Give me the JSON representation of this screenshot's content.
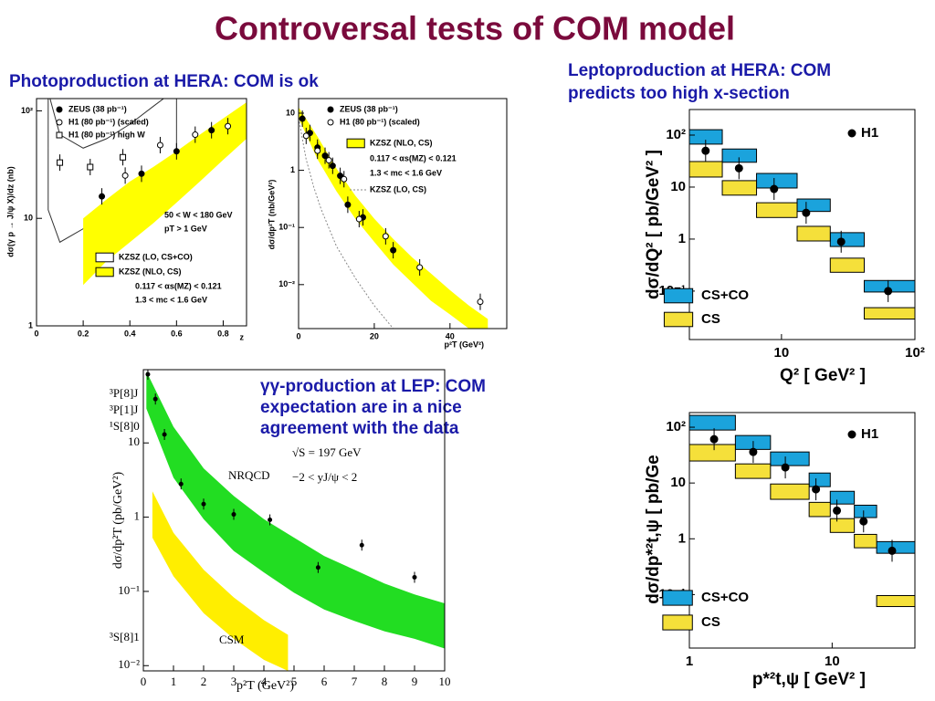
{
  "title": "Controversal tests of COM model",
  "headings": [
    "Photoproduction at HERA: COM is ok",
    "Leptoproduction at HERA: COM",
    "predicts too high x-section"
  ],
  "caption": [
    "γγ-production at LEP: COM",
    "expectation are in a nice",
    "agreement with the data"
  ],
  "chart_data": [
    {
      "type": "scatter",
      "xlabel": "z",
      "ylabel": "dσ(γ p → J/ψ X)/dz  (nb)",
      "xlim": [
        0,
        0.9
      ],
      "ylim": [
        1,
        130
      ],
      "ylog": true,
      "xticks": [
        0,
        0.2,
        0.4,
        0.6,
        0.8
      ],
      "yticks": [
        1,
        10,
        {
          "value": 100,
          "label": "10²"
        }
      ],
      "series": [
        {
          "name": "ZEUS (38 pb⁻¹)",
          "marker": "filled",
          "color": "#000000",
          "x": [
            0.28,
            0.45,
            0.6,
            0.75
          ],
          "values": [
            16,
            26,
            42,
            66
          ]
        },
        {
          "name": "H1 (80 pb⁻¹) (scaled)",
          "marker": "open",
          "color": "#000000",
          "x": [
            0.38,
            0.53,
            0.68,
            0.82
          ],
          "values": [
            25,
            48,
            60,
            72
          ]
        },
        {
          "name": "H1 (80 pb⁻¹) high W",
          "marker": "square",
          "color": "#000000",
          "x": [
            0.1,
            0.23,
            0.37
          ],
          "values": [
            33,
            30,
            37
          ]
        }
      ],
      "bands": [
        {
          "name": "KZSZ (LO, CS+CO)",
          "color": "none",
          "x": [
            0.05,
            0.1,
            0.2,
            0.3,
            0.4,
            0.5,
            0.6
          ],
          "upper": [
            150,
            60,
            45,
            55,
            75,
            110,
            160
          ],
          "lower": [
            12,
            6,
            8,
            13,
            17,
            22,
            28
          ]
        },
        {
          "name": "KZSZ (NLO, CS)",
          "color": "#ffff00",
          "x": [
            0.2,
            0.3,
            0.4,
            0.5,
            0.6,
            0.7,
            0.8,
            0.9
          ],
          "upper": [
            10,
            15,
            22,
            30,
            42,
            60,
            85,
            120
          ],
          "lower": [
            2.4,
            4,
            6,
            9,
            14,
            22,
            35,
            55
          ]
        }
      ],
      "annotations": [
        "50 < W < 180 GeV",
        "pT > 1 GeV",
        "0.117 < αs(MZ) < 0.121",
        "1.3 < mc < 1.6 GeV"
      ]
    },
    {
      "type": "scatter",
      "xlabel": "p²T (GeV²)",
      "ylabel": "dσ/dp²T (nb/GeV²)",
      "xlim": [
        0,
        55
      ],
      "ylim": [
        0.0017,
        18
      ],
      "ylog": true,
      "xticks": [
        0,
        20,
        40
      ],
      "yticks": [
        {
          "value": 0.01,
          "label": "10⁻²"
        },
        {
          "value": 0.1,
          "label": "10⁻¹"
        },
        1,
        10
      ],
      "series": [
        {
          "name": "ZEUS (38 pb⁻¹)",
          "marker": "filled",
          "color": "#000000",
          "x": [
            1,
            3,
            5,
            7,
            9,
            11,
            13,
            17,
            25
          ],
          "values": [
            8,
            4.5,
            2.5,
            1.8,
            1.2,
            0.8,
            0.25,
            0.15,
            0.04
          ]
        },
        {
          "name": "H1 (80 pb⁻¹) (scaled)",
          "marker": "open",
          "color": "#000000",
          "x": [
            2,
            5,
            8,
            12,
            16,
            23,
            32,
            48
          ],
          "values": [
            4,
            2.2,
            1.5,
            0.7,
            0.14,
            0.07,
            0.02,
            0.005
          ]
        }
      ],
      "bands": [
        {
          "name": "KZSZ (NLO, CS)",
          "color": "#ffff00",
          "x": [
            0,
            5,
            10,
            15,
            20,
            25,
            30,
            35,
            40,
            45,
            50
          ],
          "upper": [
            12.7,
            3.9,
            1.08,
            0.36,
            0.142,
            0.063,
            0.03,
            0.0156,
            0.008,
            0.0043,
            0.0025
          ],
          "lower": [
            8.2,
            1.56,
            0.43,
            0.142,
            0.056,
            0.0225,
            0.0108,
            0.0052,
            0.003,
            0.0017,
            0.0011
          ]
        }
      ],
      "lines": [
        {
          "name": "KZSZ (LO, CS)",
          "color": "#888888",
          "x": [
            0,
            2,
            4,
            6,
            8,
            10,
            15,
            20,
            25
          ],
          "values": [
            8.2,
            1.56,
            0.51,
            0.205,
            0.098,
            0.047,
            0.013,
            0.0043,
            0.0017
          ]
        }
      ],
      "annotations": [
        "0.117 < αs(MZ) < 0.121",
        "1.3 < mc < 1.6 GeV"
      ]
    },
    {
      "type": "step",
      "xlabel": "Q² [ GeV² ]",
      "ylabel": "dσ/dQ² [ pb/GeV² ]",
      "xlim": [
        2.04,
        100
      ],
      "ylim": [
        0.0117,
        310
      ],
      "xlog": true,
      "ylog": true,
      "xticks": [
        10,
        {
          "value": 100,
          "label": "10²"
        }
      ],
      "yticks": [
        {
          "value": 0.1,
          "label": "10⁻¹"
        },
        1,
        10,
        {
          "value": 100,
          "label": "10²"
        }
      ],
      "boxes": [
        {
          "name": "CS+CO",
          "color": "#1ba3dc",
          "bins": [
            2.04,
            3.6,
            6.5,
            13.1,
            23.2,
            41.7,
            100
          ],
          "upper": [
            127,
            54,
            18.3,
            5.9,
            1.33,
            0.16
          ],
          "lower": [
            67,
            30,
            9.6,
            3.4,
            0.72,
            0.096
          ]
        },
        {
          "name": "CS",
          "color": "#f5e03a",
          "bins": [
            2.04,
            3.6,
            6.5,
            13.1,
            23.2,
            41.7,
            100
          ],
          "upper": [
            31,
            13.3,
            5,
            1.76,
            0.43,
            0.048
          ],
          "lower": [
            15.6,
            7,
            2.6,
            0.92,
            0.23,
            0.029
          ]
        }
      ],
      "series": [
        {
          "name": "H1",
          "marker": "filled",
          "color": "#000000",
          "x": [
            2.7,
            4.8,
            8.8,
            15.3,
            28,
            63
          ],
          "values": [
            50,
            23,
            9.2,
            3.2,
            0.89,
            0.1
          ]
        }
      ]
    },
    {
      "type": "scatter",
      "xlabel": "p²T (GeV²)",
      "ylabel": "dσ/dp²T (pb/GeV²)",
      "xlim": [
        0,
        10
      ],
      "ylim": [
        0.0085,
        97
      ],
      "ylog": true,
      "xticks": [
        0,
        1,
        2,
        3,
        4,
        5,
        6,
        7,
        8,
        9,
        10
      ],
      "yticks": [
        {
          "value": 0.01,
          "label": "10⁻²"
        },
        {
          "value": 0.1,
          "label": "10⁻¹"
        },
        1,
        10
      ],
      "bands": [
        {
          "name": "NRQCD",
          "color": "#22dd22",
          "x": [
            0.1,
            1,
            2,
            3,
            4,
            5,
            6,
            7,
            8,
            9,
            10
          ],
          "upper": [
            92,
            16.5,
            4.55,
            1.93,
            0.94,
            0.53,
            0.3,
            0.196,
            0.128,
            0.091,
            0.069
          ],
          "lower": [
            29,
            3.4,
            0.94,
            0.35,
            0.18,
            0.096,
            0.057,
            0.04,
            0.029,
            0.023,
            0.017
          ]
        },
        {
          "name": "CSM",
          "color": "#ffee00",
          "x": [
            0.3,
            1,
            2,
            3,
            4,
            4.8
          ],
          "upper": [
            2.23,
            0.615,
            0.196,
            0.083,
            0.041,
            0.026
          ],
          "lower": [
            0.53,
            0.16,
            0.051,
            0.023,
            0.012,
            0.0085
          ]
        }
      ],
      "series": [
        {
          "marker": "filled",
          "color": "#000000",
          "x": [
            0.15,
            0.4,
            0.7,
            1.25,
            2,
            3,
            4.2,
            5.8,
            7.25,
            9
          ],
          "values": [
            84,
            39,
            13,
            2.8,
            1.5,
            1.09,
            0.92,
            0.21,
            0.42,
            0.155
          ]
        }
      ],
      "annotations": [
        "√S = 197 GeV",
        "−2 < yJ/ψ < 2",
        "³P[8]J",
        "³P[1]J",
        "¹S[8]0",
        "³S[8]1"
      ]
    },
    {
      "type": "step",
      "xlabel": "p*²t,ψ [ GeV² ]",
      "ylabel": "dσ/dp*²t,ψ [ pb/Ge",
      "xlim": [
        1,
        38
      ],
      "ylim": [
        0.011,
        183
      ],
      "xlog": true,
      "ylog": true,
      "xticks": [
        1,
        10
      ],
      "yticks": [
        {
          "value": 0.1,
          "label": "10⁻¹"
        },
        1,
        10,
        {
          "value": 100,
          "label": "10²"
        }
      ],
      "boxes": [
        {
          "name": "CS+CO",
          "color": "#1ba3dc",
          "bins": [
            1,
            2.1,
            3.7,
            6.9,
            9.7,
            14.3,
            20.5,
            38
          ],
          "upper": [
            163,
            71,
            36,
            15.1,
            7.1,
            4,
            0.89
          ],
          "lower": [
            89,
            40,
            20.5,
            8.6,
            4.2,
            2.4,
            0.55
          ]
        },
        {
          "name": "CS",
          "color": "#f5e03a",
          "bins": [
            1,
            2.1,
            3.7,
            6.9,
            9.7,
            14.3,
            20.5,
            38
          ],
          "upper": [
            49,
            22,
            9.6,
            4.5,
            2.3,
            1.2,
            0.096
          ],
          "lower": [
            24.8,
            12.1,
            5.1,
            2.5,
            1.3,
            0.69,
            0.061
          ]
        }
      ],
      "series": [
        {
          "name": "H1",
          "marker": "filled",
          "color": "#000000",
          "x": [
            1.49,
            2.8,
            4.7,
            7.7,
            10.8,
            16.6,
            26.3
          ],
          "values": [
            61,
            36,
            19,
            7.7,
            3.2,
            2.05,
            0.61
          ]
        }
      ]
    }
  ]
}
